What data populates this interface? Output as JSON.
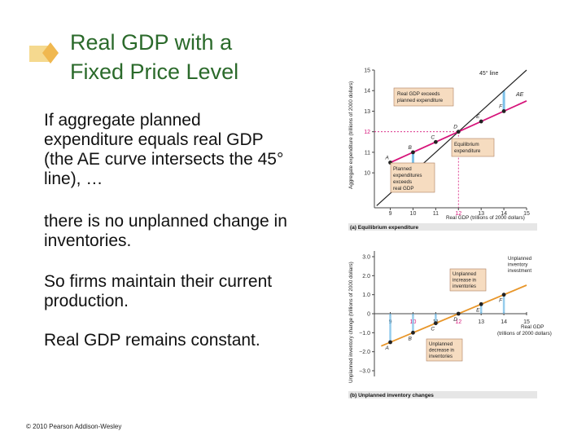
{
  "slide": {
    "title_line1": "Real GDP with a",
    "title_line2": "Fixed Price Level",
    "paragraphs": [
      "If aggregate planned expenditure equals real GDP (the AE curve intersects the 45° line), …",
      "there is no unplanned change in inventories.",
      "So firms maintain their current production.",
      "Real GDP remains constant."
    ],
    "copyright": "© 2010 Pearson Addison-Wesley",
    "colors": {
      "title": "#2b6a2b",
      "ae_line": "#d6147a",
      "unplanned_line": "#e8962a",
      "callout": "#f6dcc0",
      "arrow": "#7cc0e8",
      "diamond": "#f5c36a"
    }
  },
  "chart_data": [
    {
      "type": "line",
      "caption": "(a) Equilibrium expenditure",
      "ylabel": "Aggregate expenditure (trillions of 2000 dollars)",
      "xlabel": "Real GDP (trillions of 2000 dollars)",
      "xlim": [
        8.3,
        15
      ],
      "ylim": [
        8.3,
        15
      ],
      "xticks": [
        "9",
        "10",
        "11",
        "12",
        "13",
        "14",
        "15"
      ],
      "yticks": [
        "10",
        "11",
        "12",
        "13",
        "14",
        "15"
      ],
      "highlight_tick": "12",
      "series": [
        {
          "name": "45° line",
          "x": [
            8.4,
            15
          ],
          "y": [
            8.4,
            15
          ]
        },
        {
          "name": "AE",
          "x": [
            9,
            15
          ],
          "y": [
            10.5,
            13.5
          ]
        }
      ],
      "points": [
        {
          "label": "A",
          "x": 9,
          "y": 10.5
        },
        {
          "label": "B",
          "x": 10,
          "y": 11
        },
        {
          "label": "C",
          "x": 11,
          "y": 11.5
        },
        {
          "label": "D",
          "x": 12,
          "y": 12
        },
        {
          "label": "E",
          "x": 13,
          "y": 12.5
        },
        {
          "label": "F",
          "x": 14,
          "y": 13
        }
      ],
      "annotations": [
        "Real GDP exceeds planned expenditure",
        "Equilibrium expenditure",
        "Planned expenditure exceeds real GDP"
      ]
    },
    {
      "type": "line",
      "caption": "(b) Unplanned inventory changes",
      "ylabel": "Unplanned inventory change (trillions of 2000 dollars)",
      "xlabel": "Real GDP (trillions of 2000 dollars)",
      "xlim": [
        8.3,
        15
      ],
      "ylim": [
        -3.3,
        3.3
      ],
      "xticks": [
        "9",
        "10",
        "11",
        "12",
        "13",
        "14",
        "15"
      ],
      "yticks": [
        "3.0",
        "2.0",
        "1.0",
        "0",
        "−1.0",
        "−2.0",
        "−3.0"
      ],
      "highlight_ticks": [
        "10",
        "12"
      ],
      "series": [
        {
          "name": "Unplanned inventory investment",
          "x": [
            8.6,
            15
          ],
          "y": [
            -1.7,
            1.5
          ]
        }
      ],
      "points": [
        {
          "label": "A",
          "x": 9,
          "y": -1.5
        },
        {
          "label": "B",
          "x": 10,
          "y": -1.0
        },
        {
          "label": "C",
          "x": 11,
          "y": -0.5
        },
        {
          "label": "D",
          "x": 12,
          "y": 0
        },
        {
          "label": "E",
          "x": 13,
          "y": 0.5
        },
        {
          "label": "F",
          "x": 14,
          "y": 1.0
        }
      ],
      "annotations": [
        "Unplanned increase in inventories",
        "Unplanned decrease in inventories"
      ]
    }
  ]
}
